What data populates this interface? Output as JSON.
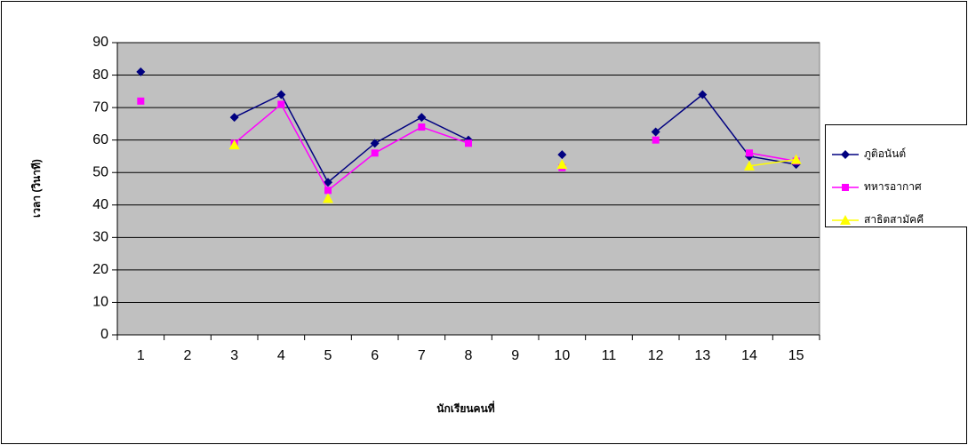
{
  "chart_data": {
    "type": "line",
    "x_label": "นักเรียนคนที่",
    "y_label": "เวลา (วินาที)",
    "categories": [
      "1",
      "2",
      "3",
      "4",
      "5",
      "6",
      "7",
      "8",
      "9",
      "10",
      "11",
      "12",
      "13",
      "14",
      "15"
    ],
    "series": [
      {
        "name": "ภูติอนันต์",
        "color": "#000080",
        "marker": "diamond",
        "values": [
          81,
          null,
          67,
          74,
          47,
          59,
          67,
          60,
          null,
          55.5,
          null,
          62.5,
          74,
          55,
          52.5
        ]
      },
      {
        "name": "ทหารอากาศ",
        "color": "#ff00ff",
        "marker": "square",
        "values": [
          72,
          null,
          59,
          71,
          44.5,
          56,
          64,
          59,
          null,
          51.5,
          null,
          60,
          null,
          56,
          53.5
        ]
      },
      {
        "name": "สาธิตสามัคคี",
        "color": "#ffff00",
        "marker": "triangle",
        "values": [
          null,
          null,
          58.5,
          null,
          42,
          null,
          null,
          null,
          null,
          52.5,
          null,
          null,
          null,
          52,
          54
        ]
      }
    ],
    "ylim": [
      0,
      90
    ],
    "yticks": [
      0,
      10,
      20,
      30,
      40,
      50,
      60,
      70,
      80,
      90
    ],
    "grid": true,
    "legend": "right",
    "plot_background": "#c0c0c0"
  }
}
